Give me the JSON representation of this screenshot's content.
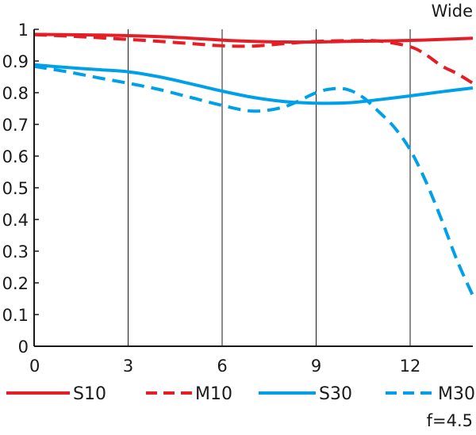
{
  "chart_data": {
    "type": "line",
    "title": "Wide",
    "note": "f=4.5",
    "xlabel": "",
    "ylabel": "",
    "xlim": [
      0,
      14
    ],
    "ylim": [
      0,
      1
    ],
    "xticks": [
      0,
      3,
      6,
      9,
      12
    ],
    "xtick_labels": [
      "0",
      "3",
      "6",
      "9",
      "12"
    ],
    "yticks": [
      0,
      0.1,
      0.2,
      0.3,
      0.4,
      0.5,
      0.6,
      0.7,
      0.8,
      0.9,
      1
    ],
    "ytick_labels": [
      "0",
      "0.1",
      "0.2",
      "0.3",
      "0.4",
      "0.5",
      "0.6",
      "0.7",
      "0.8",
      "0.9",
      "1"
    ],
    "grid": "vertical",
    "legend_position": "bottom",
    "series": [
      {
        "name": "S10",
        "color": "#e41e26",
        "dash": "solid",
        "x": [
          0,
          1,
          2,
          3,
          4,
          5,
          6,
          7,
          8,
          9,
          10,
          11,
          12,
          13,
          14
        ],
        "y": [
          0.984,
          0.983,
          0.982,
          0.98,
          0.977,
          0.972,
          0.966,
          0.962,
          0.96,
          0.96,
          0.962,
          0.963,
          0.965,
          0.968,
          0.972
        ]
      },
      {
        "name": "M10",
        "color": "#e41e26",
        "dash": "dashed",
        "x": [
          0,
          1,
          2,
          3,
          4,
          5,
          6,
          7,
          8,
          9,
          10,
          11,
          12,
          12.5,
          13,
          13.5,
          14
        ],
        "y": [
          0.983,
          0.979,
          0.974,
          0.968,
          0.962,
          0.955,
          0.948,
          0.947,
          0.955,
          0.962,
          0.964,
          0.963,
          0.945,
          0.92,
          0.885,
          0.86,
          0.83
        ]
      },
      {
        "name": "S30",
        "color": "#00a0e9",
        "dash": "solid",
        "x": [
          0,
          1,
          2,
          3,
          4,
          5,
          6,
          7,
          8,
          9,
          10,
          11,
          12,
          13,
          14
        ],
        "y": [
          0.888,
          0.88,
          0.873,
          0.866,
          0.85,
          0.828,
          0.805,
          0.785,
          0.772,
          0.767,
          0.768,
          0.778,
          0.79,
          0.803,
          0.815
        ]
      },
      {
        "name": "M30",
        "color": "#00a0e9",
        "dash": "dashed",
        "x": [
          0,
          1,
          2,
          3,
          4,
          5,
          6,
          7,
          8,
          9,
          9.5,
          10,
          10.5,
          11,
          11.5,
          12,
          12.5,
          13,
          13.5,
          14
        ],
        "y": [
          0.883,
          0.867,
          0.848,
          0.83,
          0.81,
          0.785,
          0.76,
          0.742,
          0.756,
          0.8,
          0.812,
          0.81,
          0.785,
          0.74,
          0.69,
          0.62,
          0.52,
          0.4,
          0.27,
          0.16
        ]
      }
    ]
  }
}
